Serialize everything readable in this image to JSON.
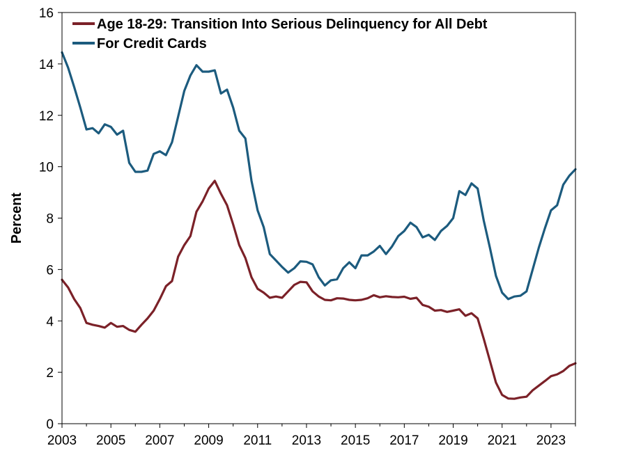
{
  "chart_data": {
    "type": "line",
    "title": "",
    "xlabel": "",
    "ylabel": "Percent",
    "xlim": [
      2003,
      2024
    ],
    "ylim": [
      0,
      16
    ],
    "x_ticks": [
      "2003",
      "2005",
      "2007",
      "2009",
      "2011",
      "2013",
      "2015",
      "2017",
      "2019",
      "2021",
      "2023"
    ],
    "y_ticks": [
      "0",
      "2",
      "4",
      "6",
      "8",
      "10",
      "12",
      "14",
      "16"
    ],
    "grid": false,
    "legend_position": "top-left",
    "series": [
      {
        "name": "Age 18-29: Transition Into Serious Delinquency for All Debt",
        "color": "#7b2128",
        "points": [
          [
            2003.0,
            5.6
          ],
          [
            2003.25,
            5.3
          ],
          [
            2003.5,
            4.85
          ],
          [
            2003.75,
            4.5
          ],
          [
            2004.0,
            3.92
          ],
          [
            2004.25,
            3.85
          ],
          [
            2004.5,
            3.8
          ],
          [
            2004.75,
            3.74
          ],
          [
            2005.0,
            3.92
          ],
          [
            2005.25,
            3.77
          ],
          [
            2005.5,
            3.8
          ],
          [
            2005.75,
            3.65
          ],
          [
            2006.0,
            3.58
          ],
          [
            2006.25,
            3.85
          ],
          [
            2006.5,
            4.1
          ],
          [
            2006.75,
            4.4
          ],
          [
            2007.0,
            4.85
          ],
          [
            2007.25,
            5.35
          ],
          [
            2007.5,
            5.55
          ],
          [
            2007.75,
            6.5
          ],
          [
            2008.0,
            6.95
          ],
          [
            2008.25,
            7.3
          ],
          [
            2008.5,
            8.25
          ],
          [
            2008.75,
            8.65
          ],
          [
            2009.0,
            9.15
          ],
          [
            2009.25,
            9.45
          ],
          [
            2009.5,
            8.95
          ],
          [
            2009.75,
            8.5
          ],
          [
            2010.0,
            7.75
          ],
          [
            2010.25,
            6.95
          ],
          [
            2010.5,
            6.45
          ],
          [
            2010.75,
            5.7
          ],
          [
            2011.0,
            5.25
          ],
          [
            2011.25,
            5.1
          ],
          [
            2011.5,
            4.9
          ],
          [
            2011.75,
            4.95
          ],
          [
            2012.0,
            4.9
          ],
          [
            2012.25,
            5.15
          ],
          [
            2012.5,
            5.4
          ],
          [
            2012.75,
            5.52
          ],
          [
            2013.0,
            5.5
          ],
          [
            2013.25,
            5.15
          ],
          [
            2013.5,
            4.95
          ],
          [
            2013.75,
            4.82
          ],
          [
            2014.0,
            4.8
          ],
          [
            2014.25,
            4.88
          ],
          [
            2014.5,
            4.87
          ],
          [
            2014.75,
            4.82
          ],
          [
            2015.0,
            4.8
          ],
          [
            2015.25,
            4.82
          ],
          [
            2015.5,
            4.88
          ],
          [
            2015.75,
            5.0
          ],
          [
            2016.0,
            4.92
          ],
          [
            2016.25,
            4.96
          ],
          [
            2016.5,
            4.93
          ],
          [
            2016.75,
            4.92
          ],
          [
            2017.0,
            4.94
          ],
          [
            2017.25,
            4.86
          ],
          [
            2017.5,
            4.9
          ],
          [
            2017.75,
            4.62
          ],
          [
            2018.0,
            4.55
          ],
          [
            2018.25,
            4.4
          ],
          [
            2018.5,
            4.42
          ],
          [
            2018.75,
            4.35
          ],
          [
            2019.0,
            4.4
          ],
          [
            2019.25,
            4.45
          ],
          [
            2019.5,
            4.2
          ],
          [
            2019.75,
            4.3
          ],
          [
            2020.0,
            4.1
          ],
          [
            2020.25,
            3.3
          ],
          [
            2020.5,
            2.45
          ],
          [
            2020.75,
            1.6
          ],
          [
            2021.0,
            1.12
          ],
          [
            2021.25,
            0.98
          ],
          [
            2021.5,
            0.97
          ],
          [
            2021.75,
            1.02
          ],
          [
            2022.0,
            1.05
          ],
          [
            2022.25,
            1.3
          ],
          [
            2022.5,
            1.48
          ],
          [
            2022.75,
            1.66
          ],
          [
            2023.0,
            1.85
          ],
          [
            2023.25,
            1.92
          ],
          [
            2023.5,
            2.05
          ],
          [
            2023.75,
            2.25
          ],
          [
            2024.0,
            2.35
          ]
        ]
      },
      {
        "name": "For Credit Cards",
        "color": "#1c5b7e",
        "points": [
          [
            2003.0,
            14.45
          ],
          [
            2003.25,
            13.85
          ],
          [
            2003.5,
            13.1
          ],
          [
            2003.75,
            12.3
          ],
          [
            2004.0,
            11.45
          ],
          [
            2004.25,
            11.5
          ],
          [
            2004.5,
            11.3
          ],
          [
            2004.75,
            11.65
          ],
          [
            2005.0,
            11.55
          ],
          [
            2005.25,
            11.25
          ],
          [
            2005.5,
            11.4
          ],
          [
            2005.75,
            10.15
          ],
          [
            2006.0,
            9.8
          ],
          [
            2006.25,
            9.8
          ],
          [
            2006.5,
            9.85
          ],
          [
            2006.75,
            10.5
          ],
          [
            2007.0,
            10.6
          ],
          [
            2007.25,
            10.45
          ],
          [
            2007.5,
            10.95
          ],
          [
            2007.75,
            11.95
          ],
          [
            2008.0,
            12.95
          ],
          [
            2008.25,
            13.55
          ],
          [
            2008.5,
            13.95
          ],
          [
            2008.75,
            13.7
          ],
          [
            2009.0,
            13.7
          ],
          [
            2009.25,
            13.75
          ],
          [
            2009.5,
            12.85
          ],
          [
            2009.75,
            13.0
          ],
          [
            2010.0,
            12.3
          ],
          [
            2010.25,
            11.4
          ],
          [
            2010.5,
            11.1
          ],
          [
            2010.75,
            9.45
          ],
          [
            2011.0,
            8.3
          ],
          [
            2011.25,
            7.65
          ],
          [
            2011.5,
            6.6
          ],
          [
            2011.75,
            6.35
          ],
          [
            2012.0,
            6.1
          ],
          [
            2012.25,
            5.88
          ],
          [
            2012.5,
            6.05
          ],
          [
            2012.75,
            6.32
          ],
          [
            2013.0,
            6.3
          ],
          [
            2013.25,
            6.2
          ],
          [
            2013.5,
            5.7
          ],
          [
            2013.75,
            5.38
          ],
          [
            2014.0,
            5.58
          ],
          [
            2014.25,
            5.62
          ],
          [
            2014.5,
            6.05
          ],
          [
            2014.75,
            6.28
          ],
          [
            2015.0,
            6.05
          ],
          [
            2015.25,
            6.55
          ],
          [
            2015.5,
            6.55
          ],
          [
            2015.75,
            6.7
          ],
          [
            2016.0,
            6.92
          ],
          [
            2016.25,
            6.6
          ],
          [
            2016.5,
            6.9
          ],
          [
            2016.75,
            7.3
          ],
          [
            2017.0,
            7.5
          ],
          [
            2017.25,
            7.82
          ],
          [
            2017.5,
            7.65
          ],
          [
            2017.75,
            7.25
          ],
          [
            2018.0,
            7.35
          ],
          [
            2018.25,
            7.15
          ],
          [
            2018.5,
            7.5
          ],
          [
            2018.75,
            7.7
          ],
          [
            2019.0,
            8.0
          ],
          [
            2019.25,
            9.05
          ],
          [
            2019.5,
            8.9
          ],
          [
            2019.75,
            9.35
          ],
          [
            2020.0,
            9.15
          ],
          [
            2020.25,
            7.9
          ],
          [
            2020.5,
            6.85
          ],
          [
            2020.75,
            5.75
          ],
          [
            2021.0,
            5.1
          ],
          [
            2021.25,
            4.85
          ],
          [
            2021.5,
            4.95
          ],
          [
            2021.75,
            4.98
          ],
          [
            2022.0,
            5.15
          ],
          [
            2022.25,
            6.0
          ],
          [
            2022.5,
            6.85
          ],
          [
            2022.75,
            7.6
          ],
          [
            2023.0,
            8.3
          ],
          [
            2023.25,
            8.5
          ],
          [
            2023.5,
            9.3
          ],
          [
            2023.75,
            9.65
          ],
          [
            2024.0,
            9.9
          ]
        ]
      }
    ]
  }
}
